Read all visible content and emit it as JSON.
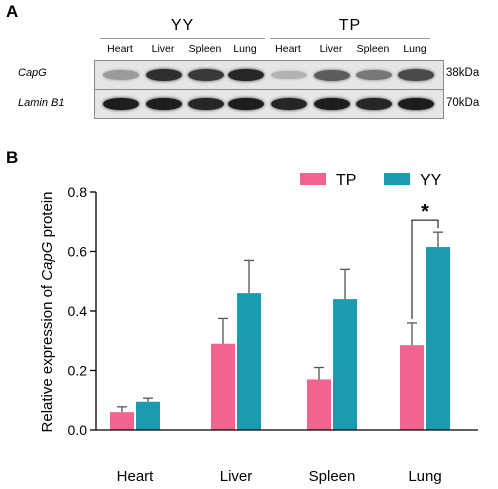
{
  "panel_a": {
    "letter": "A",
    "groups": [
      {
        "name": "YY",
        "lanes": [
          "Heart",
          "Liver",
          "Spleen",
          "Lung"
        ]
      },
      {
        "name": "TP",
        "lanes": [
          "Heart",
          "Liver",
          "Spleen",
          "Lung"
        ]
      }
    ],
    "blots": [
      {
        "protein": "CapG",
        "mw": "38kDa",
        "band_intensity": [
          0.25,
          0.85,
          0.8,
          0.9,
          0.12,
          0.6,
          0.45,
          0.7
        ]
      },
      {
        "protein": "Lamin B1",
        "mw": "70kDa",
        "band_intensity": [
          0.95,
          0.95,
          0.9,
          0.95,
          0.9,
          0.95,
          0.9,
          0.95
        ]
      }
    ]
  },
  "panel_b": {
    "letter": "B",
    "chart_data": {
      "type": "bar",
      "categories": [
        "Heart",
        "Liver",
        "Spleen",
        "Lung"
      ],
      "series": [
        {
          "name": "TP",
          "color": "#f0648e",
          "values": [
            0.06,
            0.29,
            0.17,
            0.285
          ],
          "errors": [
            0.018,
            0.085,
            0.04,
            0.075
          ]
        },
        {
          "name": "YY",
          "color": "#1a9bb0",
          "values": [
            0.095,
            0.46,
            0.44,
            0.615
          ],
          "errors": [
            0.012,
            0.11,
            0.1,
            0.05
          ]
        }
      ],
      "ylabel_prefix": "Relative expression of ",
      "ylabel_italic": "CapG",
      "ylabel_suffix": " protein",
      "ylim": [
        0,
        0.8
      ],
      "yticks": [
        "0.0",
        "0.2",
        "0.4",
        "0.6",
        "0.8"
      ],
      "legend_position": "top-right",
      "significance": {
        "category": "Lung",
        "marker": "*"
      }
    }
  }
}
